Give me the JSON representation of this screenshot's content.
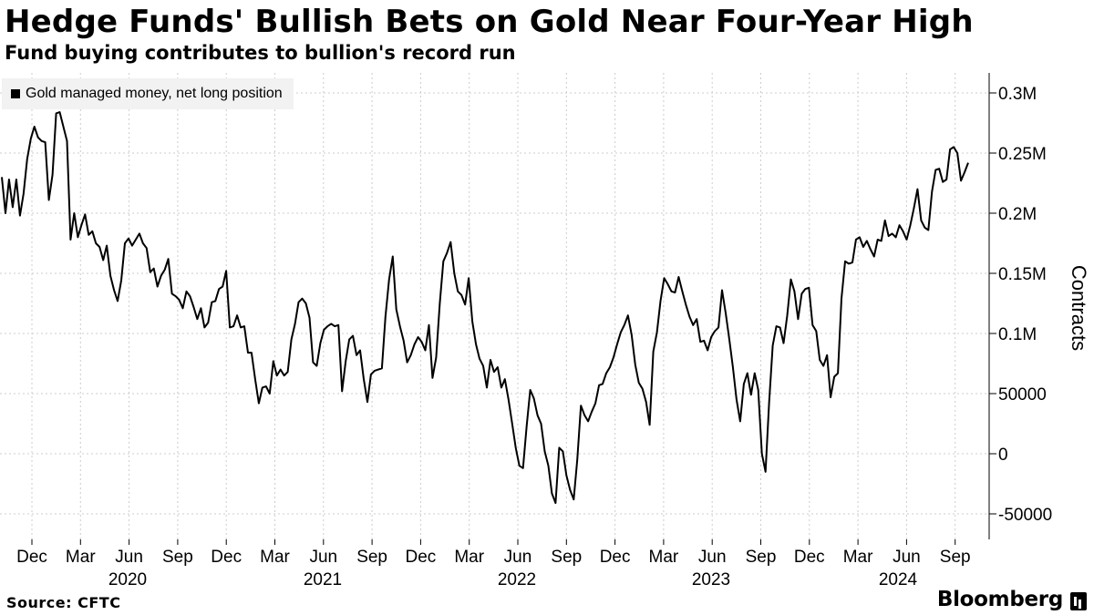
{
  "header": {
    "title": "Hedge Funds' Bullish Bets on Gold Near Four-Year High",
    "subtitle": "Fund buying contributes to bullion's record run"
  },
  "footer": {
    "source": "Source: CFTC",
    "brand": "Bloomberg"
  },
  "colors": {
    "line": "#000000",
    "grid": "#cccccc",
    "axis": "#000000",
    "legend_bg": "#f2f2f2"
  },
  "chart_data": {
    "type": "line",
    "title": "Hedge Funds' Bullish Bets on Gold Near Four-Year High",
    "subtitle": "Fund buying contributes to bullion's record run",
    "xlabel": "",
    "ylabel": "Contracts",
    "ylim": [
      -75000,
      315000
    ],
    "legend_position": "top-left",
    "grid": true,
    "y_axis_side": "right",
    "y_ticks": [
      {
        "value": 300000,
        "label": "0.3M"
      },
      {
        "value": 250000,
        "label": "0.25M"
      },
      {
        "value": 200000,
        "label": "0.2M"
      },
      {
        "value": 150000,
        "label": "0.15M"
      },
      {
        "value": 100000,
        "label": "0.1M"
      },
      {
        "value": 50000,
        "label": "50000"
      },
      {
        "value": 0,
        "label": "0"
      },
      {
        "value": -50000,
        "label": "-50000"
      }
    ],
    "x_month_ticks": [
      "Dec",
      "Mar",
      "Jun",
      "Sep",
      "Dec",
      "Mar",
      "Jun",
      "Sep",
      "Dec",
      "Mar",
      "Jun",
      "Sep",
      "Dec",
      "Mar",
      "Jun",
      "Sep",
      "Dec",
      "Mar",
      "Jun",
      "Sep"
    ],
    "x_year_labels": [
      "2020",
      "2021",
      "2022",
      "2023",
      "2024"
    ],
    "series": [
      {
        "name": "Gold managed money, net long position",
        "values": [
          230000,
          200000,
          228000,
          205000,
          228000,
          198000,
          216000,
          245000,
          262000,
          272000,
          263000,
          260000,
          259000,
          211000,
          232000,
          283000,
          284000,
          272000,
          260000,
          178000,
          200000,
          180000,
          190000,
          199000,
          182000,
          185000,
          175000,
          172000,
          161000,
          173000,
          148000,
          136000,
          127000,
          144000,
          175000,
          179000,
          173000,
          178000,
          183000,
          175000,
          171000,
          151000,
          154000,
          139000,
          148000,
          153000,
          162000,
          133000,
          131000,
          128000,
          121000,
          135000,
          131000,
          122000,
          112000,
          121000,
          105000,
          109000,
          126000,
          127000,
          137000,
          139000,
          152000,
          105000,
          106000,
          115000,
          105000,
          106000,
          84000,
          84000,
          62000,
          42000,
          55000,
          56000,
          50000,
          77000,
          65000,
          70000,
          65000,
          68000,
          95000,
          108000,
          126000,
          129000,
          125000,
          113000,
          76000,
          73000,
          92000,
          103000,
          106000,
          108000,
          106000,
          107000,
          52000,
          77000,
          95000,
          98000,
          82000,
          86000,
          62000,
          43000,
          66000,
          69000,
          70000,
          71000,
          114000,
          145000,
          164000,
          120000,
          106000,
          94000,
          76000,
          82000,
          91000,
          97000,
          93000,
          86000,
          107000,
          63000,
          80000,
          125000,
          160000,
          167000,
          176000,
          150000,
          135000,
          132000,
          124000,
          146000,
          110000,
          91000,
          79000,
          73000,
          55000,
          78000,
          68000,
          72000,
          55000,
          62000,
          45000,
          25000,
          5000,
          -10000,
          -12000,
          23000,
          53000,
          46000,
          32000,
          25000,
          2000,
          -10000,
          -33000,
          -41000,
          5000,
          2000,
          -18000,
          -30000,
          -38000,
          -5000,
          40000,
          32000,
          27000,
          35000,
          42000,
          57000,
          58000,
          67000,
          72000,
          80000,
          91000,
          101000,
          107000,
          115000,
          99000,
          74000,
          59000,
          54000,
          43000,
          24000,
          85000,
          101000,
          127000,
          146000,
          141000,
          135000,
          134000,
          147000,
          135000,
          124000,
          114000,
          107000,
          112000,
          93000,
          94000,
          86000,
          97000,
          102000,
          105000,
          136000,
          117000,
          95000,
          72000,
          45000,
          27000,
          58000,
          67000,
          49000,
          67000,
          53000,
          0,
          -15000,
          42000,
          90000,
          106000,
          105000,
          92000,
          115000,
          145000,
          135000,
          112000,
          133000,
          137000,
          138000,
          107000,
          102000,
          78000,
          73000,
          82000,
          47000,
          64000,
          67000,
          129000,
          160000,
          158000,
          159000,
          178000,
          180000,
          172000,
          177000,
          170000,
          164000,
          178000,
          177000,
          194000,
          181000,
          183000,
          180000,
          190000,
          185000,
          178000,
          190000,
          204000,
          220000,
          194000,
          188000,
          186000,
          218000,
          236000,
          237000,
          226000,
          228000,
          253000,
          255000,
          250000,
          227000,
          234000,
          242000
        ]
      }
    ]
  }
}
